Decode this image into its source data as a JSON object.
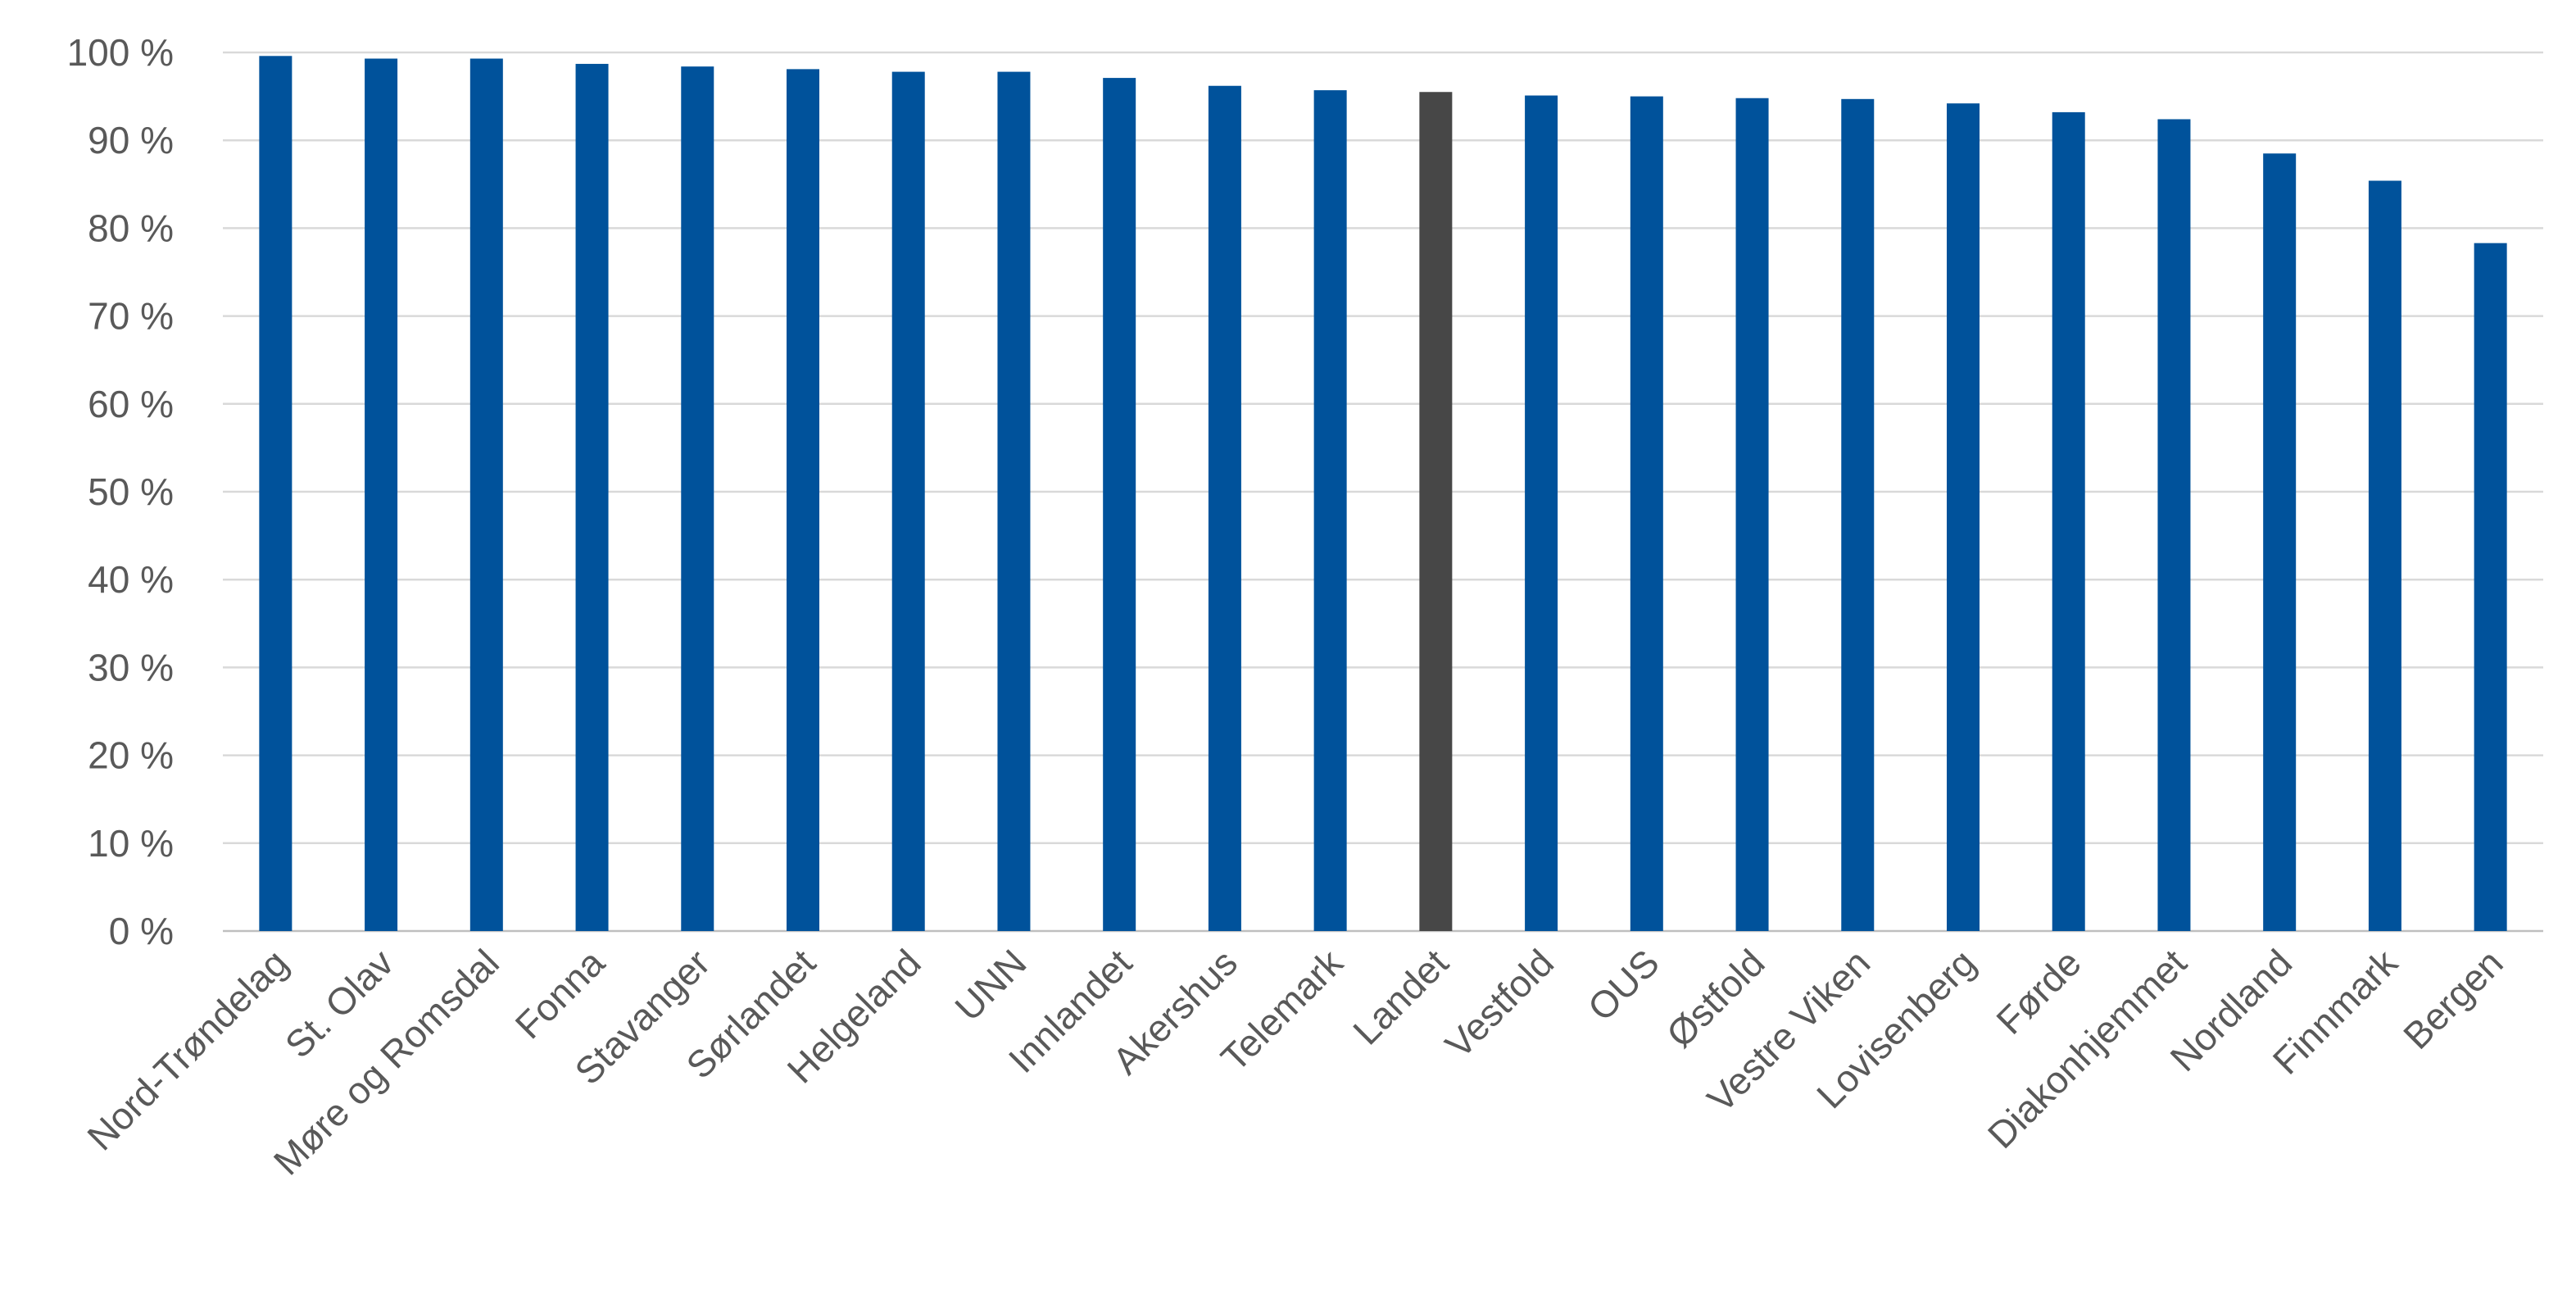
{
  "chart_data": {
    "type": "bar",
    "categories": [
      "Nord-Trøndelag",
      "St. Olav",
      "Møre og Romsdal",
      "Fonna",
      "Stavanger",
      "Sørlandet",
      "Helgeland",
      "UNN",
      "Innlandet",
      "Akershus",
      "Telemark",
      "Landet",
      "Vestfold",
      "OUS",
      "Østfold",
      "Vestre Viken",
      "Lovisenberg",
      "Førde",
      "Diakonhjemmet",
      "Nordland",
      "Finnmark",
      "Bergen"
    ],
    "values": [
      99.6,
      99.3,
      99.3,
      98.7,
      98.4,
      98.1,
      97.8,
      97.8,
      97.1,
      96.2,
      95.7,
      95.5,
      95.1,
      95.0,
      94.8,
      94.7,
      94.2,
      93.2,
      92.4,
      88.5,
      85.4,
      78.3
    ],
    "highlight_category": "Landet",
    "title": "",
    "xlabel": "",
    "ylabel": "",
    "ylim": [
      0,
      100
    ],
    "yticks": [
      0,
      10,
      20,
      30,
      40,
      50,
      60,
      70,
      80,
      90,
      100
    ],
    "ytick_labels": [
      "0 %",
      "10 %",
      "20 %",
      "30 %",
      "40 %",
      "50 %",
      "60 %",
      "70 %",
      "80 %",
      "90 %",
      "100 %"
    ],
    "grid": true,
    "legend": "none",
    "colors": {
      "bar": "#00529B",
      "highlight": "#474747",
      "grid": "#D9D9D9",
      "text": "#595959"
    }
  }
}
